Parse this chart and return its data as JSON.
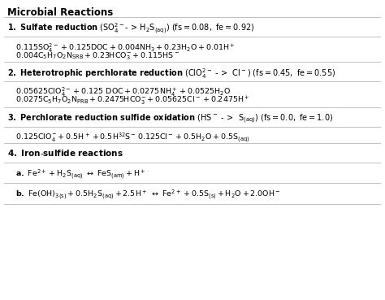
{
  "title": "Microbial Reactions",
  "background": "#ffffff",
  "figsize": [
    4.74,
    3.69
  ],
  "dpi": 100,
  "line_color": "#aaaaaa",
  "text_color": "#000000"
}
